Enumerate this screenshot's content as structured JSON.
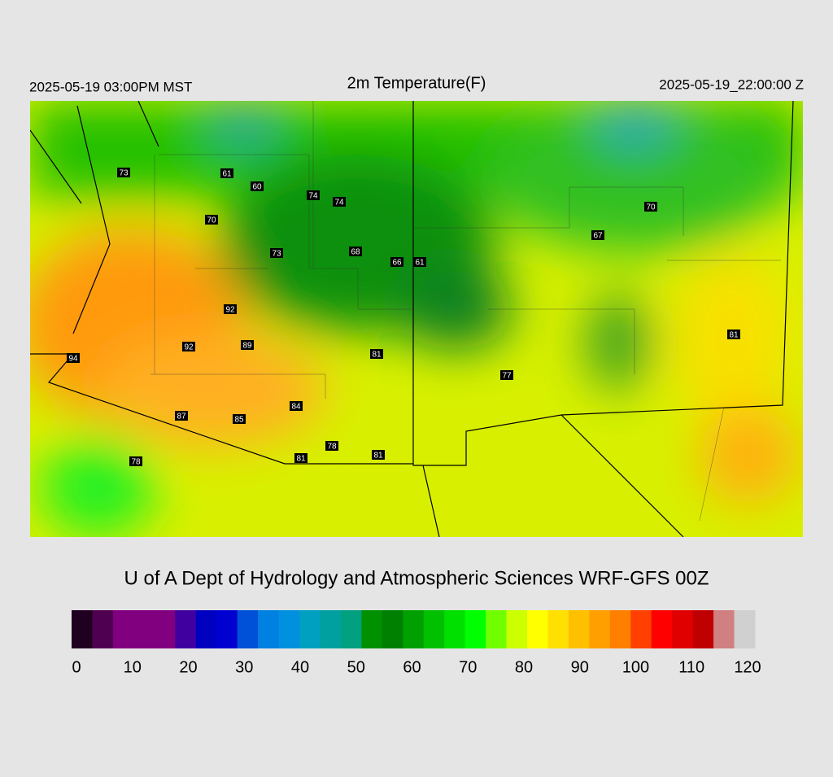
{
  "header": {
    "left": "2025-05-19 03:00PM MST",
    "title": "2m Temperature(F)",
    "right": "2025-05-19_22:00:00 Z"
  },
  "map": {
    "stations": [
      73,
      61,
      60,
      74,
      74,
      70,
      73,
      68,
      66,
      61,
      67,
      70,
      92,
      92,
      89,
      81,
      94,
      77,
      81,
      84,
      87,
      85,
      78,
      81,
      81,
      78
    ]
  },
  "credit": "U of A Dept of Hydrology and Atmospheric Sciences WRF-GFS 00Z",
  "colorbar": {
    "colors": [
      "#200020",
      "#500050",
      "#800080",
      "#800080",
      "#800080",
      "#4000a0",
      "#0000c0",
      "#0000d0",
      "#0050d8",
      "#0080e0",
      "#0090e0",
      "#00a0c0",
      "#00a0a0",
      "#00a080",
      "#009000",
      "#008000",
      "#00a000",
      "#00c000",
      "#00e000",
      "#00ff00",
      "#70ff00",
      "#ccff00",
      "#ffff00",
      "#ffe000",
      "#ffc000",
      "#ffa000",
      "#ff8000",
      "#ff4000",
      "#ff0000",
      "#e00000",
      "#c00000",
      "#d08080",
      "#d0d0d0"
    ],
    "ticks": [
      0,
      10,
      20,
      30,
      40,
      50,
      60,
      70,
      80,
      90,
      100,
      110,
      120
    ]
  }
}
